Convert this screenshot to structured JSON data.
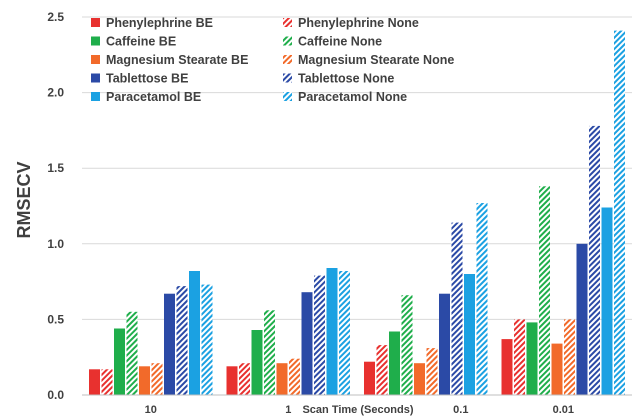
{
  "chart_data": {
    "type": "bar",
    "categories": [
      "10",
      "1",
      "0.1",
      "0.01"
    ],
    "xlabel": "Scan Time (Seconds)",
    "ylabel": "RMSECV",
    "ylim": [
      0,
      2.5
    ],
    "yticks": [
      "0.0",
      "0.5",
      "1.0",
      "1.5",
      "2.0",
      "2.5"
    ],
    "grid": "horizontal",
    "legend": "top-left",
    "series": [
      {
        "name": "Phenylephrine BE",
        "color": "#e8312f",
        "pattern": "solid",
        "values": [
          0.17,
          0.19,
          0.22,
          0.37
        ]
      },
      {
        "name": "Phenylephrine None",
        "color": "#e8312f",
        "pattern": "hatched",
        "values": [
          0.17,
          0.21,
          0.33,
          0.5
        ]
      },
      {
        "name": "Caffeine BE",
        "color": "#1fae4b",
        "pattern": "solid",
        "values": [
          0.44,
          0.43,
          0.42,
          0.48
        ]
      },
      {
        "name": "Caffeine None",
        "color": "#1fae4b",
        "pattern": "hatched",
        "values": [
          0.55,
          0.56,
          0.66,
          1.38
        ]
      },
      {
        "name": "Magnesium Stearate BE",
        "color": "#f26a2a",
        "pattern": "solid",
        "values": [
          0.19,
          0.21,
          0.21,
          0.34
        ]
      },
      {
        "name": "Magnesium Stearate None",
        "color": "#f26a2a",
        "pattern": "hatched",
        "values": [
          0.21,
          0.24,
          0.31,
          0.5
        ]
      },
      {
        "name": "Tablettose BE",
        "color": "#2b4aa6",
        "pattern": "solid",
        "values": [
          0.67,
          0.68,
          0.67,
          1.0
        ]
      },
      {
        "name": "Tablettose None",
        "color": "#2b4aa6",
        "pattern": "hatched",
        "values": [
          0.72,
          0.79,
          1.14,
          1.78
        ]
      },
      {
        "name": "Paracetamol BE",
        "color": "#1ba1e2",
        "pattern": "solid",
        "values": [
          0.82,
          0.84,
          0.8,
          1.24
        ]
      },
      {
        "name": "Paracetamol None",
        "color": "#1ba1e2",
        "pattern": "hatched",
        "values": [
          0.73,
          0.82,
          1.27,
          2.41
        ]
      }
    ]
  }
}
